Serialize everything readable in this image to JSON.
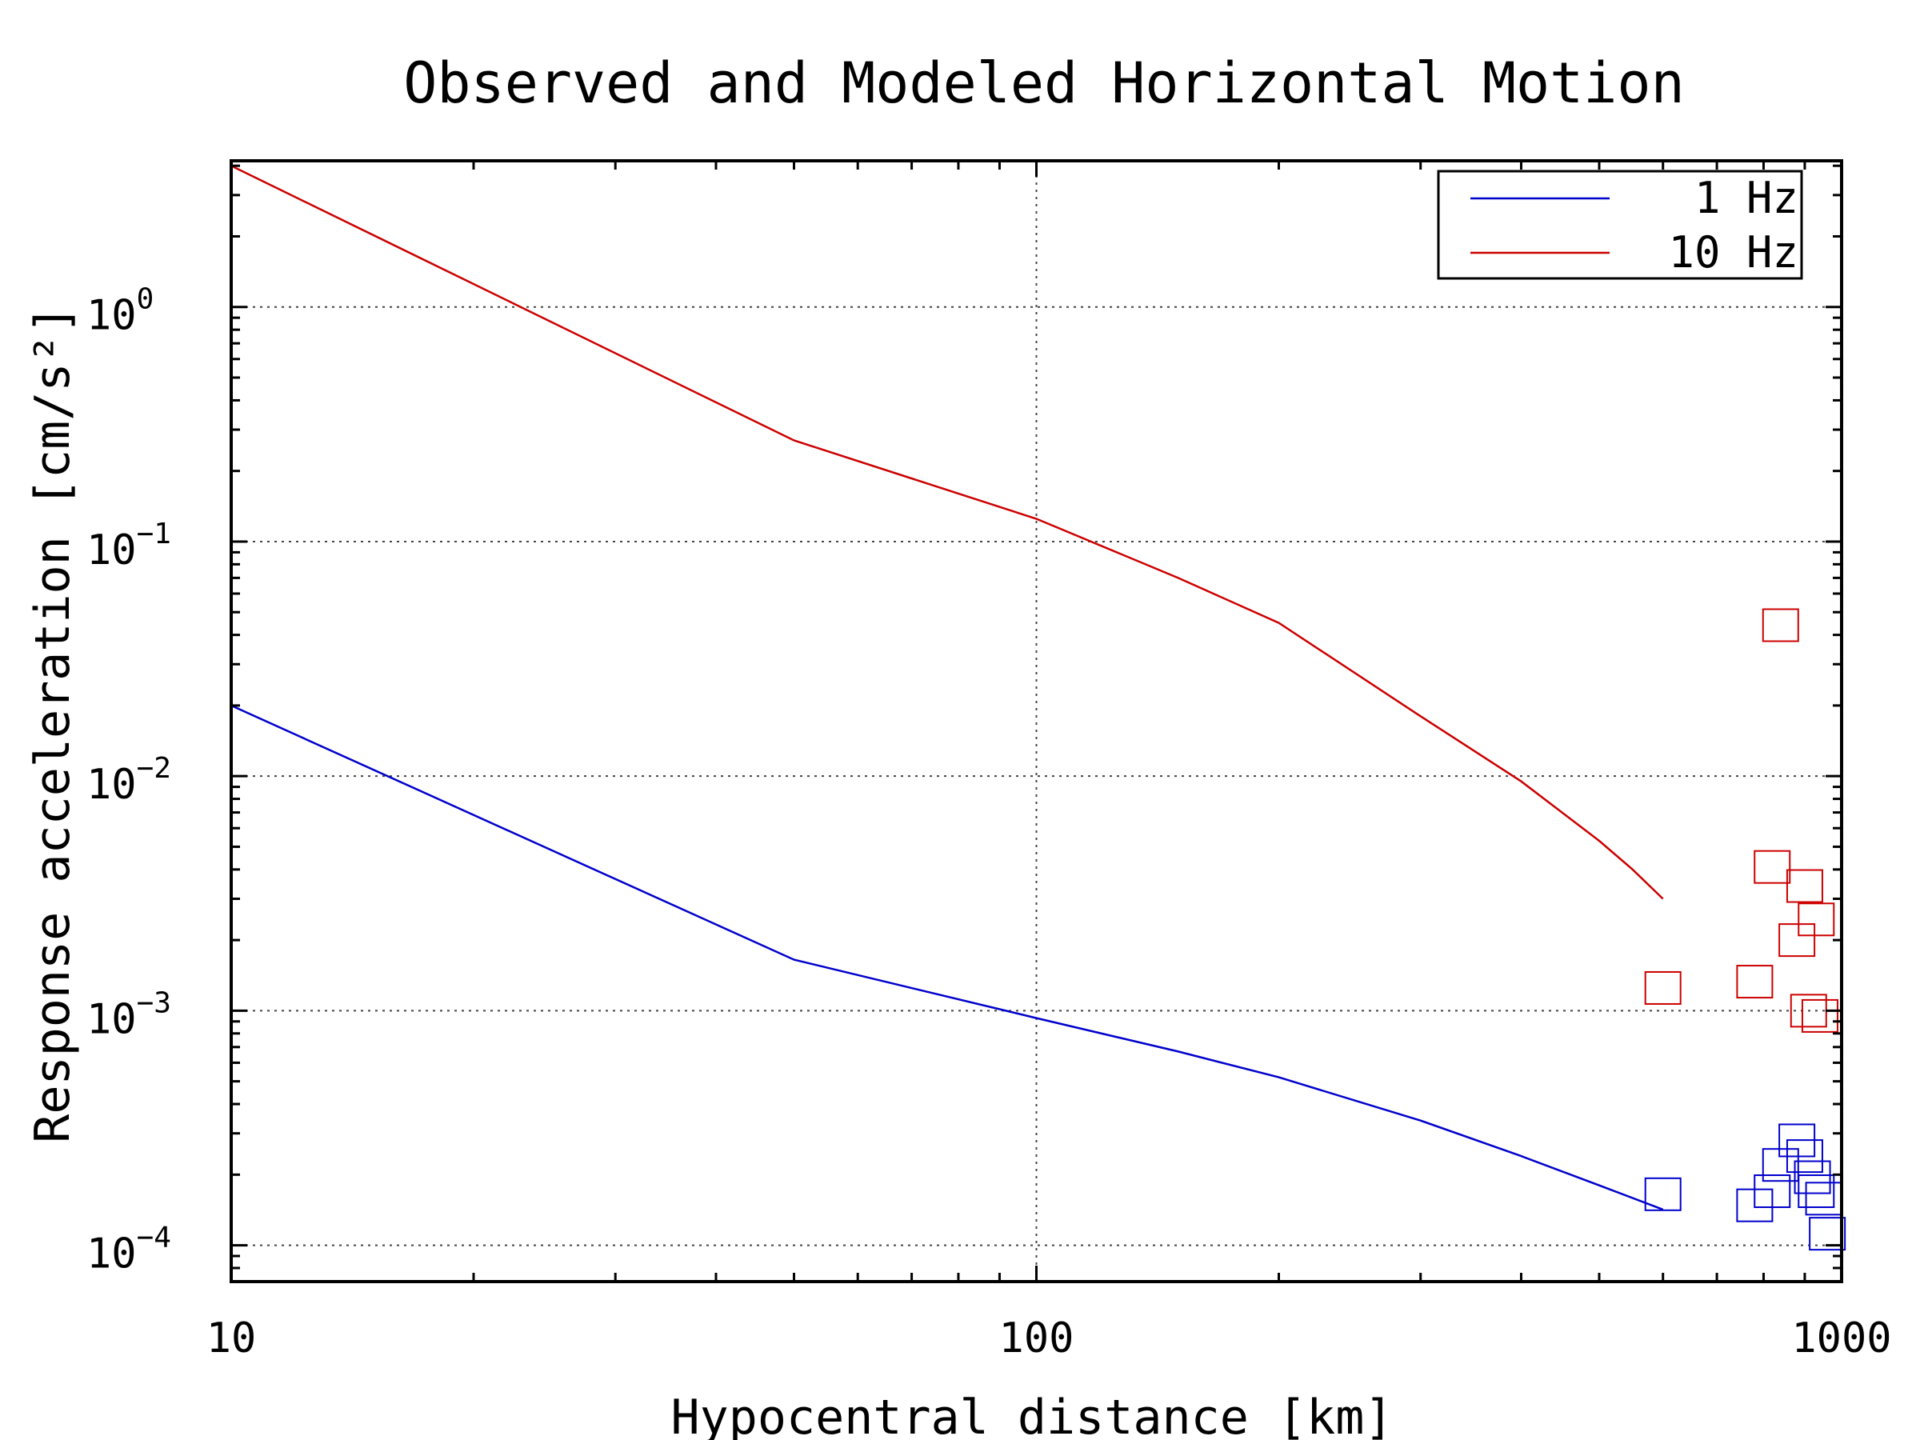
{
  "chart_data": {
    "type": "line",
    "title": "Observed and Modeled Horizontal Motion",
    "xlabel": "Hypocentral distance [km]",
    "ylabel": "Response acceleration [cm/s²]",
    "xscale": "log",
    "yscale": "log",
    "xlim": [
      10,
      1000
    ],
    "ylim": [
      7e-05,
      4.2
    ],
    "grid": true,
    "legend_position": "top-right",
    "x_ticks": [
      {
        "value": 10,
        "label": "10"
      },
      {
        "value": 100,
        "label": "100"
      },
      {
        "value": 1000,
        "label": "1000"
      }
    ],
    "y_ticks": [
      {
        "value": 1,
        "exp": "0"
      },
      {
        "value": 0.1,
        "exp": "−1"
      },
      {
        "value": 0.01,
        "exp": "−2"
      },
      {
        "value": 0.001,
        "exp": "−3"
      },
      {
        "value": 0.0001,
        "exp": "−4"
      }
    ],
    "y_tick_base": "10",
    "series": [
      {
        "name": "1 Hz",
        "color": "#0000cc",
        "model": {
          "x": [
            10,
            50,
            100,
            150,
            200,
            300,
            400,
            500,
            600
          ],
          "y": [
            0.02,
            0.00165,
            0.00093,
            0.00067,
            0.00052,
            0.00034,
            0.00024,
            0.00018,
            0.000142
          ]
        },
        "observed": {
          "x": [
            600,
            780,
            820,
            840,
            880,
            900,
            920,
            930,
            950,
            960
          ],
          "y": [
            0.000165,
            0.000148,
            0.00017,
            0.00022,
            0.00028,
            0.00024,
            0.000195,
            0.00017,
            0.000158,
            0.000112
          ]
        }
      },
      {
        "name": "10 Hz",
        "color": "#cc0000",
        "model": {
          "x": [
            10,
            50,
            100,
            150,
            200,
            300,
            400,
            500,
            550,
            600
          ],
          "y": [
            4.0,
            0.27,
            0.125,
            0.07,
            0.045,
            0.018,
            0.0095,
            0.0053,
            0.004,
            0.003
          ]
        },
        "observed": {
          "x": [
            600,
            780,
            820,
            840,
            880,
            900,
            910,
            930,
            940
          ],
          "y": [
            0.00125,
            0.00133,
            0.0041,
            0.044,
            0.002,
            0.0034,
            0.001,
            0.00245,
            0.00095
          ]
        }
      }
    ]
  }
}
